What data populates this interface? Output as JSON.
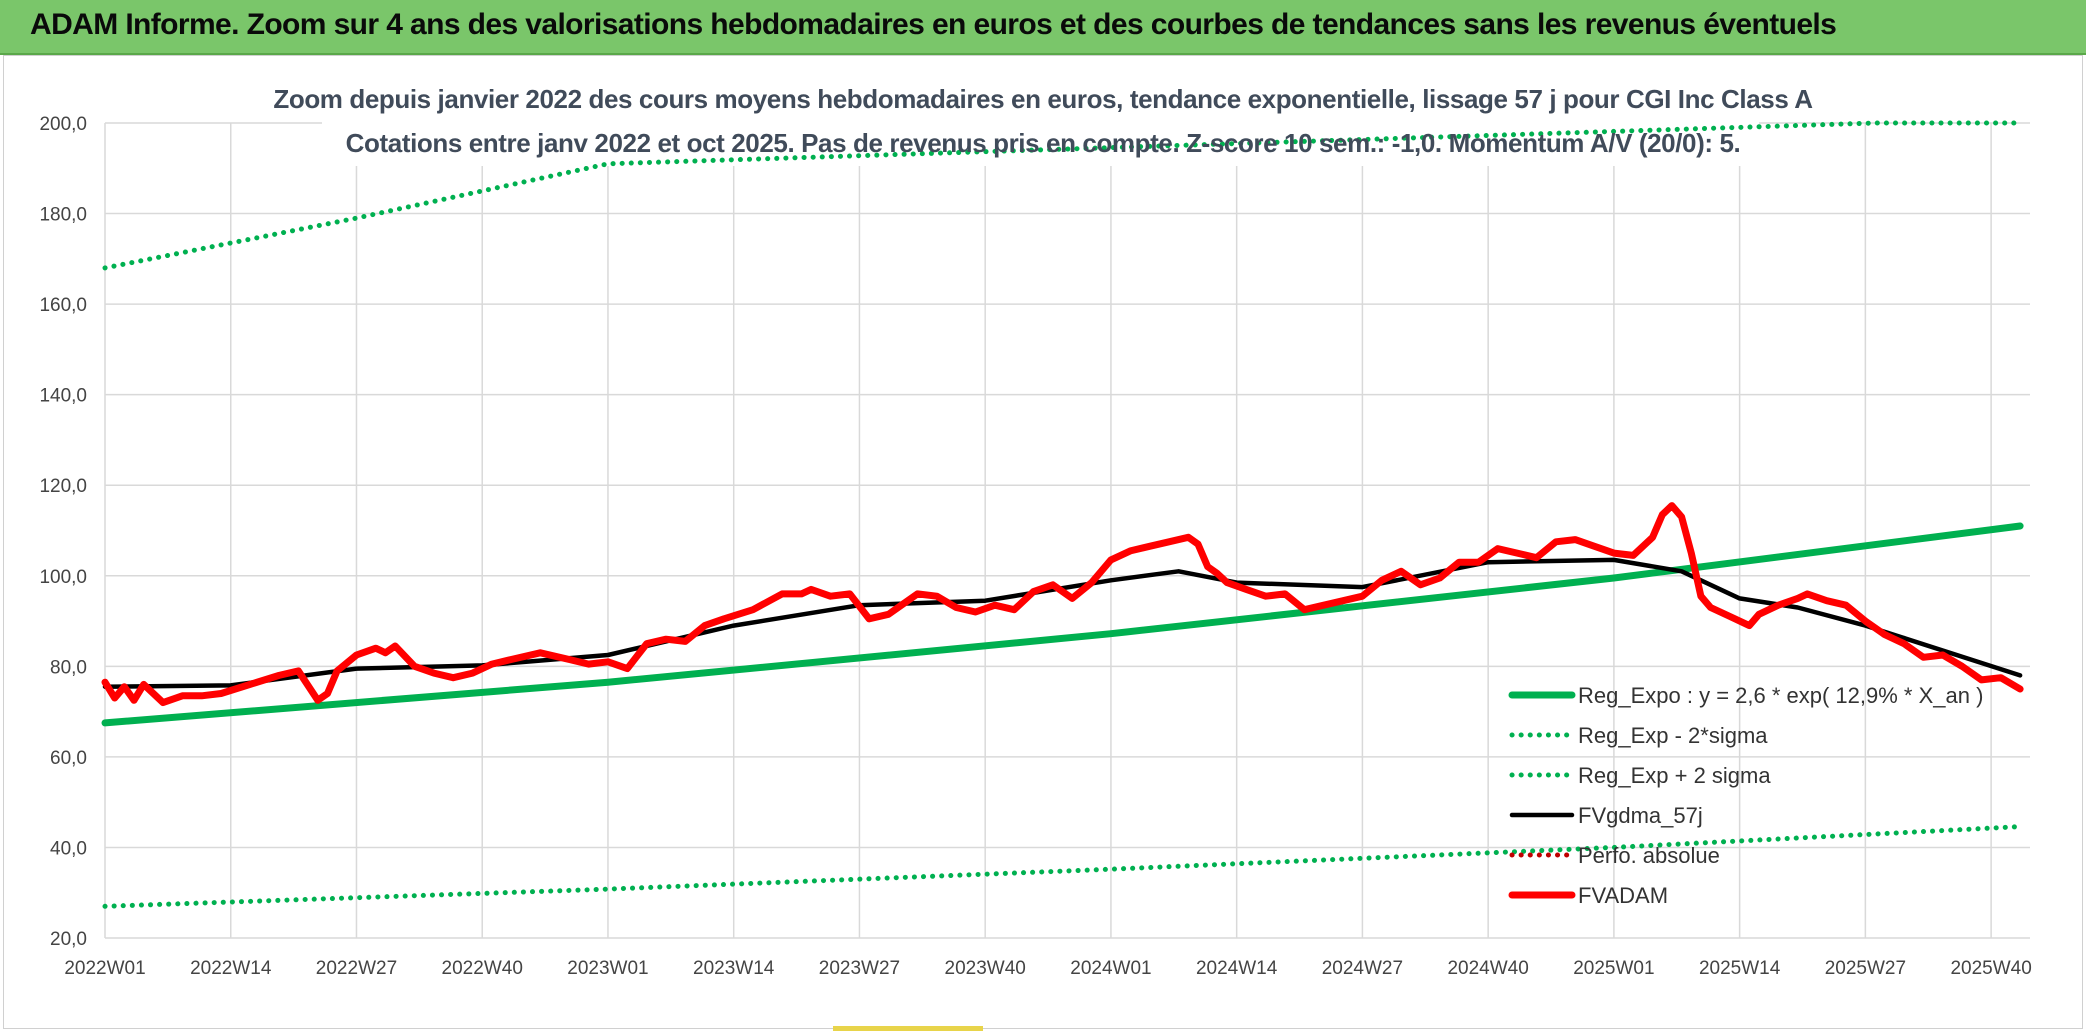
{
  "banner": {
    "title": "ADAM Informe. Zoom sur 4 ans des valorisations hebdomadaires en euros et des courbes de tendances sans les revenus éventuels"
  },
  "colors": {
    "banner_bg": "#7ac66a",
    "reg_expo": "#00b050",
    "fvgdma": "#000000",
    "fvadam": "#ff0000",
    "grid": "#d9d9d9"
  },
  "chart_data": {
    "type": "line",
    "title": "Zoom depuis janvier 2022 des cours moyens hebdomadaires en euros, tendance exponentielle, lissage 57 j pour CGI Inc Class A",
    "subtitle": "Cotations entre janv 2022 et oct 2025. Pas de revenus pris en compte. Z-score 10 sem.: -1,0. Momentum A/V (20/0): 5.",
    "xlabel": "",
    "ylabel": "",
    "ylim": [
      20,
      200
    ],
    "yticks": [
      "20,0",
      "40,0",
      "60,0",
      "80,0",
      "100,0",
      "120,0",
      "140,0",
      "160,0",
      "180,0",
      "200,0"
    ],
    "grid": true,
    "legend_position": "bottom-right",
    "x_tick_labels": [
      "2022W01",
      "2022W14",
      "2022W27",
      "2022W40",
      "2023W01",
      "2023W14",
      "2023W27",
      "2023W40",
      "2024W01",
      "2024W14",
      "2024W27",
      "2024W40",
      "2025W01",
      "2025W14",
      "2025W27",
      "2025W40"
    ],
    "series": [
      {
        "name": "Reg_Expo : y = 2,6 * exp( 12,9% *  X_an )",
        "style": "solid-thick",
        "color": "#00b050",
        "x": [
          "2022W01",
          "2023W01",
          "2024W01",
          "2025W01",
          "2025W43"
        ],
        "values": [
          67.5,
          76.5,
          87.2,
          99.5,
          111.0
        ]
      },
      {
        "name": "Reg_Exp - 2*sigma",
        "style": "dotted",
        "color": "#00b050",
        "x": [
          "2022W01",
          "2023W01",
          "2024W01",
          "2025W01",
          "2025W43"
        ],
        "values": [
          27.0,
          30.8,
          35.2,
          40.0,
          44.6
        ]
      },
      {
        "name": "Reg_Exp + 2 sigma",
        "style": "dotted",
        "color": "#00b050",
        "x": [
          "2022W01",
          "2022W27",
          "2023W01",
          "2025W28",
          "2025W43"
        ],
        "values": [
          168.0,
          179.0,
          191.0,
          200.0,
          200.0
        ]
      },
      {
        "name": "FVgdma_57j",
        "style": "solid",
        "color": "#000000",
        "x": [
          "2022W01",
          "2022W14",
          "2022W27",
          "2022W40",
          "2023W01",
          "2023W14",
          "2023W27",
          "2023W40",
          "2024W01",
          "2024W08",
          "2024W14",
          "2024W27",
          "2024W40",
          "2025W01",
          "2025W08",
          "2025W14",
          "2025W20",
          "2025W27",
          "2025W43"
        ],
        "values": [
          75.5,
          75.8,
          79.5,
          80.2,
          82.5,
          89.0,
          93.5,
          94.5,
          99.0,
          101.0,
          98.5,
          97.5,
          103.0,
          103.5,
          101.0,
          95.0,
          93.0,
          89.0,
          78.0
        ]
      },
      {
        "name": "Perfo. absolue",
        "style": "dotted",
        "color": "#c00000",
        "x": [],
        "values": []
      },
      {
        "name": "FVADAM",
        "style": "solid-thick",
        "color": "#ff0000",
        "x": [
          "2022W01",
          "2022W02",
          "2022W03",
          "2022W04",
          "2022W05",
          "2022W07",
          "2022W09",
          "2022W11",
          "2022W13",
          "2022W16",
          "2022W19",
          "2022W21",
          "2022W23",
          "2022W24",
          "2022W25",
          "2022W27",
          "2022W29",
          "2022W30",
          "2022W31",
          "2022W33",
          "2022W35",
          "2022W37",
          "2022W39",
          "2022W41",
          "2022W43",
          "2022W46",
          "2022W49",
          "2022W51",
          "2023W01",
          "2023W03",
          "2023W05",
          "2023W07",
          "2023W09",
          "2023W11",
          "2023W13",
          "2023W16",
          "2023W19",
          "2023W21",
          "2023W22",
          "2023W24",
          "2023W26",
          "2023W28",
          "2023W30",
          "2023W31",
          "2023W33",
          "2023W35",
          "2023W37",
          "2023W39",
          "2023W41",
          "2023W43",
          "2023W45",
          "2023W47",
          "2023W49",
          "2023W51",
          "2024W01",
          "2024W03",
          "2024W05",
          "2024W07",
          "2024W09",
          "2024W10",
          "2024W11",
          "2024W12",
          "2024W13",
          "2024W15",
          "2024W17",
          "2024W19",
          "2024W21",
          "2024W23",
          "2024W25",
          "2024W27",
          "2024W29",
          "2024W31",
          "2024W33",
          "2024W35",
          "2024W37",
          "2024W39",
          "2024W41",
          "2024W43",
          "2024W45",
          "2024W47",
          "2024W49",
          "2024W51",
          "2025W01",
          "2025W03",
          "2025W05",
          "2025W06",
          "2025W07",
          "2025W08",
          "2025W09",
          "2025W10",
          "2025W11",
          "2025W13",
          "2025W15",
          "2025W16",
          "2025W18",
          "2025W20",
          "2025W21",
          "2025W23",
          "2025W25",
          "2025W27",
          "2025W29",
          "2025W31",
          "2025W33",
          "2025W35",
          "2025W37",
          "2025W39",
          "2025W41",
          "2025W43"
        ],
        "values": [
          76.5,
          73.0,
          75.5,
          72.5,
          76.0,
          72.0,
          73.5,
          73.5,
          74.0,
          76.0,
          78.0,
          79.0,
          72.5,
          74.0,
          79.0,
          82.5,
          84.0,
          83.0,
          84.5,
          80.0,
          78.5,
          77.5,
          78.5,
          80.5,
          81.5,
          83.0,
          81.5,
          80.5,
          81.0,
          79.5,
          85.0,
          86.0,
          85.5,
          89.0,
          90.5,
          92.5,
          96.0,
          96.0,
          97.0,
          95.5,
          96.0,
          90.5,
          91.5,
          93.0,
          96.0,
          95.5,
          93.0,
          92.0,
          93.5,
          92.5,
          96.5,
          98.0,
          95.0,
          98.5,
          103.5,
          105.5,
          106.5,
          107.5,
          108.5,
          107.0,
          102.0,
          100.5,
          98.5,
          97.0,
          95.5,
          96.0,
          92.5,
          93.5,
          94.5,
          95.5,
          99.0,
          101.0,
          98.0,
          99.5,
          103.0,
          103.0,
          106.0,
          105.0,
          104.0,
          107.5,
          108.0,
          106.5,
          105.0,
          104.5,
          108.5,
          113.5,
          115.5,
          113.0,
          105.0,
          95.5,
          93.0,
          91.0,
          89.0,
          91.5,
          93.5,
          95.0,
          96.0,
          94.5,
          93.5,
          90.0,
          87.0,
          85.0,
          82.0,
          82.5,
          80.0,
          77.0,
          77.5,
          75.0
        ]
      }
    ]
  }
}
